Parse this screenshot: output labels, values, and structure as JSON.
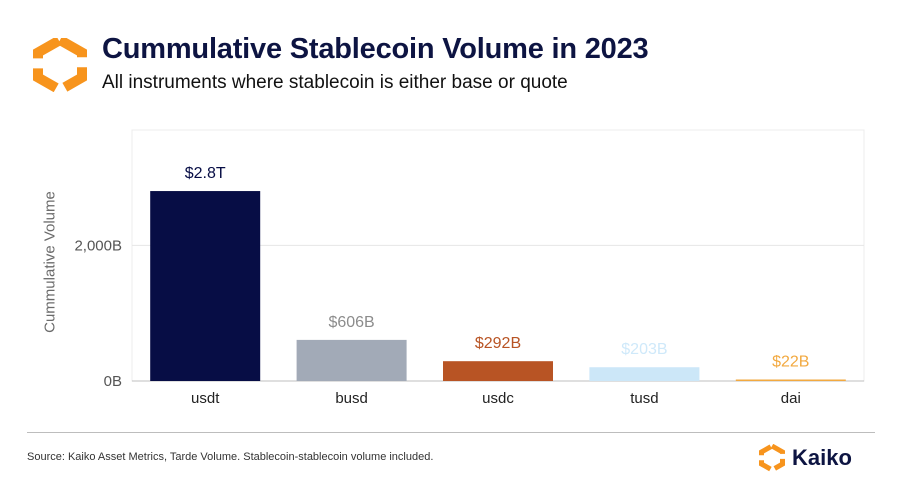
{
  "header": {
    "title": "Cummulative Stablecoin Volume in 2023",
    "subtitle": "All instruments where stablecoin is either base or quote"
  },
  "footer": {
    "source": "Source: Kaiko Asset Metrics, Tarde Volume. Stablecoin-stablecoin volume included.",
    "brand": "Kaiko"
  },
  "logo": {
    "icon": "kaiko-hexagon-logo",
    "color": "#f7941d"
  },
  "chart_data": {
    "type": "bar",
    "title": "Cummulative Stablecoin Volume in 2023",
    "subtitle": "All instruments where stablecoin is either base or quote",
    "xlabel": "",
    "ylabel": "Cummulative Volume",
    "categories": [
      "usdt",
      "busd",
      "usdc",
      "tusd",
      "dai"
    ],
    "values": [
      2800,
      606,
      292,
      203,
      22
    ],
    "value_labels": [
      "$2.8T",
      "$606B",
      "$292B",
      "$203B",
      "$22B"
    ],
    "unit": "B",
    "colors": [
      "#070d45",
      "#a2aab7",
      "#b85424",
      "#cce7f8",
      "#f2a940"
    ],
    "label_colors": [
      "#070d45",
      "#8c8c8c",
      "#b85424",
      "#cfe9fa",
      "#f2a940"
    ],
    "y_ticks": [
      {
        "value": 0,
        "label": "0B"
      },
      {
        "value": 2000,
        "label": "2,000B"
      }
    ],
    "ylim": [
      0,
      3700
    ],
    "grid": true,
    "legend": "none"
  }
}
